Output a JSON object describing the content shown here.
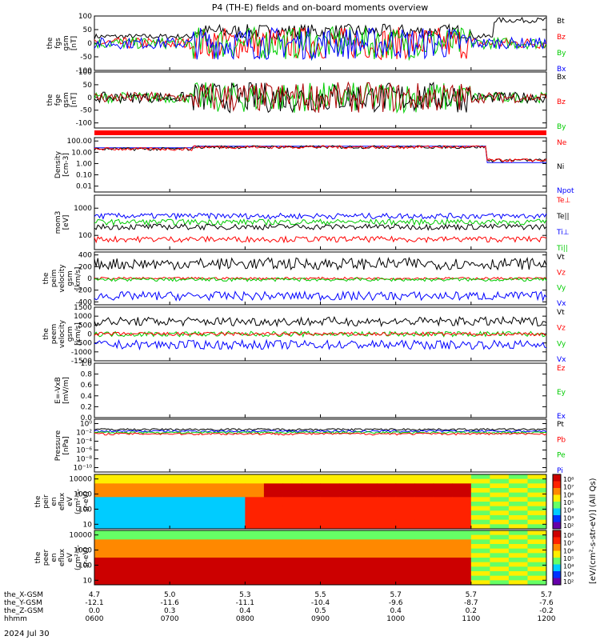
{
  "title": "P4 (TH-E) fields and on-board moments overview",
  "date_label": "2024 Jul 30",
  "colorbar_label": "[eV/(cm²-s-str-eV)] (All Qs)",
  "chart_data": {
    "type": "line",
    "x": {
      "hhmm": [
        "0600",
        "0700",
        "0800",
        "0900",
        "1000",
        "1100",
        "1200"
      ],
      "rows": [
        {
          "label": "the_X-GSM",
          "values": [
            "4.7",
            "5.0",
            "5.3",
            "5.5",
            "5.7",
            "5.7",
            "5.7"
          ]
        },
        {
          "label": "the_Y-GSM",
          "values": [
            "-12.1",
            "-11.6",
            "-11.1",
            "-10.4",
            "-9.6",
            "-8.7",
            "-7.6"
          ]
        },
        {
          "label": "the_Z-GSM",
          "values": [
            "0.0",
            "0.3",
            "0.4",
            "0.5",
            "0.4",
            "0.2",
            "-0.2"
          ]
        },
        {
          "label": "hhmm",
          "values": [
            "0600",
            "0700",
            "0800",
            "0900",
            "1000",
            "1100",
            "1200"
          ]
        }
      ]
    },
    "panels": [
      {
        "id": "fgs",
        "ylabel": [
          "the",
          "fgs",
          "gsm",
          "[nT]"
        ],
        "ylim": [
          -100,
          100
        ],
        "scale": "linear",
        "ticks": [
          "100",
          "50",
          "0",
          "-50",
          "-100"
        ],
        "tick_vals": [
          100,
          50,
          0,
          -50,
          -100
        ],
        "legend": [
          {
            "name": "Bt",
            "color": "#000000"
          },
          {
            "name": "Bz",
            "color": "#ff0000"
          },
          {
            "name": "By",
            "color": "#00cc00"
          },
          {
            "name": "Bx",
            "color": "#0000ff"
          }
        ]
      },
      {
        "id": "fge",
        "ylabel": [
          "the",
          "fge",
          "gsm",
          "[nT]"
        ],
        "ylim": [
          -120,
          100
        ],
        "scale": "linear",
        "ticks": [
          "100",
          "50",
          "0",
          "-50",
          "-100"
        ],
        "tick_vals": [
          100,
          50,
          0,
          -50,
          -100
        ],
        "legend": [
          {
            "name": "Bx",
            "color": "#000000"
          },
          {
            "name": "Bz",
            "color": "#ff0000"
          },
          {
            "name": "By",
            "color": "#00cc00"
          }
        ]
      },
      {
        "id": "density",
        "ylabel": [
          "Density",
          "[cm-3]"
        ],
        "ylim": [
          0.003,
          200
        ],
        "scale": "log",
        "ticks": [
          "100.00",
          "10.00",
          "1.00",
          "0.10",
          "0.01"
        ],
        "tick_vals": [
          100,
          10,
          1,
          0.1,
          0.01
        ],
        "legend": [
          {
            "name": "Ne",
            "color": "#ff0000"
          },
          {
            "name": "Ni",
            "color": "#000000"
          },
          {
            "name": "Npot",
            "color": "#0000ff"
          }
        ]
      },
      {
        "id": "temp",
        "ylabel": [
          "mom3",
          "[eV]"
        ],
        "ylim": [
          30,
          3000
        ],
        "scale": "log",
        "ticks": [
          "1000",
          "100"
        ],
        "tick_vals": [
          1000,
          100
        ],
        "legend": [
          {
            "name": "Te⊥",
            "color": "#ff0000"
          },
          {
            "name": "Te||",
            "color": "#000000"
          },
          {
            "name": "Ti⊥",
            "color": "#0000ff"
          },
          {
            "name": "Ti||",
            "color": "#00cc00"
          }
        ]
      },
      {
        "id": "vi",
        "ylabel": [
          "the",
          "peim",
          "velocity",
          "gsm",
          "[km/s]"
        ],
        "ylim": [
          -450,
          450
        ],
        "scale": "linear",
        "ticks": [
          "400",
          "200",
          "0",
          "-200",
          "-400"
        ],
        "tick_vals": [
          400,
          200,
          0,
          -200,
          -400
        ],
        "legend": [
          {
            "name": "Vt",
            "color": "#000000"
          },
          {
            "name": "Vz",
            "color": "#ff0000"
          },
          {
            "name": "Vy",
            "color": "#00cc00"
          },
          {
            "name": "Vx",
            "color": "#0000ff"
          }
        ]
      },
      {
        "id": "ve",
        "ylabel": [
          "the",
          "peem",
          "velocity",
          "gsm",
          "[km/s]"
        ],
        "ylim": [
          -1500,
          1500
        ],
        "scale": "linear",
        "ticks": [
          "1500",
          "1000",
          "500",
          "0",
          "-500",
          "-1000",
          "-1500"
        ],
        "tick_vals": [
          1500,
          1000,
          500,
          0,
          -500,
          -1000,
          -1500
        ],
        "legend": [
          {
            "name": "Vt",
            "color": "#000000"
          },
          {
            "name": "Vz",
            "color": "#ff0000"
          },
          {
            "name": "Vy",
            "color": "#00cc00"
          },
          {
            "name": "Vx",
            "color": "#0000ff"
          }
        ]
      },
      {
        "id": "efield",
        "ylabel": [
          "E=-VxB",
          "[mV/m]"
        ],
        "ylim": [
          0,
          1
        ],
        "scale": "linear",
        "ticks": [
          "1.0",
          "0.8",
          "0.6",
          "0.4",
          "0.2",
          "0.0"
        ],
        "tick_vals": [
          1,
          0.8,
          0.6,
          0.4,
          0.2,
          0
        ],
        "legend": [
          {
            "name": "Ez",
            "color": "#ff0000"
          },
          {
            "name": "Ey",
            "color": "#00cc00"
          },
          {
            "name": "Ex",
            "color": "#0000ff"
          }
        ]
      },
      {
        "id": "pressure",
        "ylabel": [
          "Pressure",
          "[nPa]"
        ],
        "ylim": [
          1e-11,
          10
        ],
        "scale": "log",
        "ticks": [
          "10⁰",
          "10⁻²",
          "10⁻⁴",
          "10⁻⁶",
          "10⁻⁸",
          "10⁻¹⁰"
        ],
        "tick_vals": [
          1,
          0.01,
          0.0001,
          1e-06,
          1e-08,
          1e-10
        ],
        "legend": [
          {
            "name": "Pt",
            "color": "#000000"
          },
          {
            "name": "Pb",
            "color": "#ff0000"
          },
          {
            "name": "Pe",
            "color": "#00cc00"
          },
          {
            "name": "Pi",
            "color": "#0000ff"
          }
        ]
      },
      {
        "id": "peir",
        "ylabel": [
          "the",
          "peir",
          "en",
          "eflux",
          "eV",
          "(cm²-s-",
          "sr-eV)"
        ],
        "ylim": [
          5,
          20000
        ],
        "scale": "log",
        "spectrogram": true,
        "ticks": [
          "10000",
          "1000",
          "100",
          "10"
        ],
        "tick_vals": [
          10000,
          1000,
          100,
          10
        ],
        "colorbar_ticks": [
          "10⁸",
          "10⁷",
          "10⁶",
          "10⁵",
          "10⁴",
          "10³",
          "10²"
        ]
      },
      {
        "id": "peer",
        "ylabel": [
          "the",
          "peer",
          "en",
          "eflux",
          "eV",
          "(cm²-s-",
          "sr-eV)"
        ],
        "ylim": [
          5,
          20000
        ],
        "scale": "log",
        "spectrogram": true,
        "ticks": [
          "10000",
          "1000",
          "100",
          "10"
        ],
        "tick_vals": [
          10000,
          1000,
          100,
          10
        ],
        "colorbar_ticks": [
          "10⁸",
          "10⁷",
          "10⁶",
          "10⁵",
          "10⁴",
          "10³",
          "10²"
        ]
      }
    ],
    "x_range_hours": [
      6,
      12
    ]
  }
}
